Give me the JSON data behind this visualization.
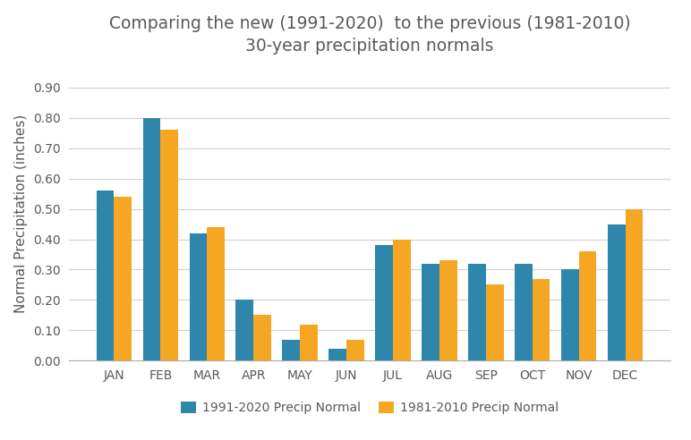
{
  "title_line1": "Comparing the new (1991-2020)  to the previous (1981-2010)",
  "title_line2": "30-year precipitation normals",
  "months": [
    "JAN",
    "FEB",
    "MAR",
    "APR",
    "MAY",
    "JUN",
    "JUL",
    "AUG",
    "SEP",
    "OCT",
    "NOV",
    "DEC"
  ],
  "values_1991_2020": [
    0.56,
    0.8,
    0.42,
    0.2,
    0.07,
    0.04,
    0.38,
    0.32,
    0.32,
    0.32,
    0.3,
    0.45
  ],
  "values_1981_2010": [
    0.54,
    0.76,
    0.44,
    0.15,
    0.12,
    0.07,
    0.4,
    0.33,
    0.25,
    0.27,
    0.36,
    0.5
  ],
  "color_1991_2020": "#2E86AB",
  "color_1981_2010": "#F5A623",
  "ylabel": "Normal Precipitation (inches)",
  "ylim": [
    0.0,
    0.97
  ],
  "yticks": [
    0.0,
    0.1,
    0.2,
    0.3,
    0.4,
    0.5,
    0.6,
    0.7,
    0.8,
    0.9
  ],
  "legend_label_1": "1991-2020 Precip Normal",
  "legend_label_2": "1981-2010 Precip Normal",
  "title_fontsize": 13.5,
  "title_color": "#595959",
  "axis_label_fontsize": 11,
  "tick_fontsize": 10,
  "legend_fontsize": 10,
  "bar_width": 0.38,
  "background_color": "#ffffff",
  "grid_color": "#d0d0d0"
}
